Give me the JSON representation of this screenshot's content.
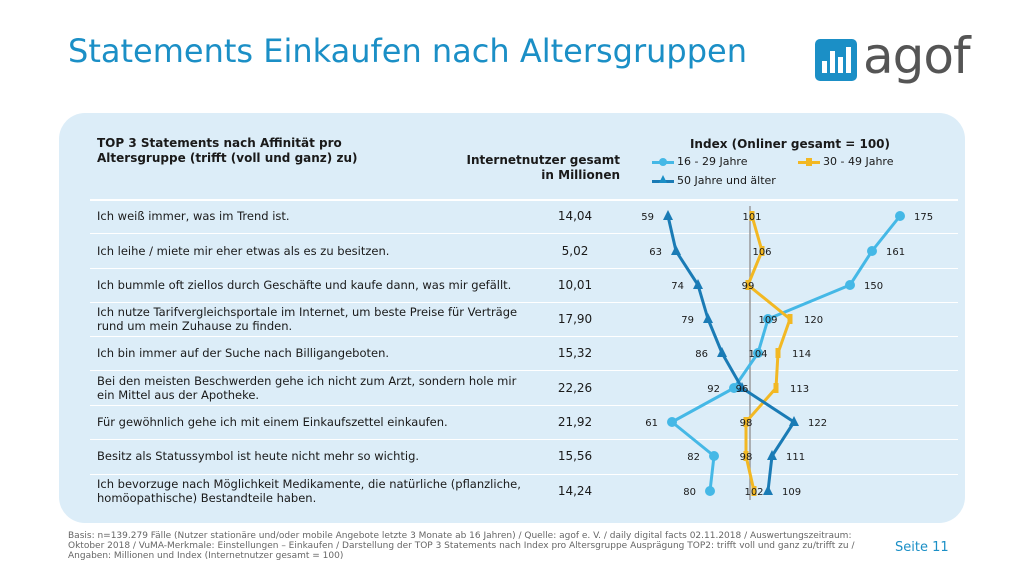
{
  "title": "Statements Einkaufen nach Altersgruppen",
  "logo_text": "agof",
  "header": {
    "left": "TOP 3 Statements nach Affinität pro Altersgruppe (trifft (voll und ganz) zu)",
    "mid_line1": "Internetnutzer gesamt",
    "mid_line2": "in Millionen",
    "right": "Index (Onliner gesamt = 100)"
  },
  "colors": {
    "age_16_29": "#45b8e6",
    "age_30_49": "#f2b823",
    "age_50_plus": "#1a7bb5",
    "baseline": "#9a9a9a",
    "accent": "#1b8fc6"
  },
  "footer": "Basis: n=139.279 Fälle (Nutzer stationäre und/oder mobile Angebote letzte 3 Monate ab 16 Jahren) / Quelle: agof e. V. / daily digital facts 02.11.2018 / Auswertungszeitraum: Oktober 2018 / VuMA-Merkmale: Einstellungen – Einkaufen / Darstellung der TOP 3 Statements nach Index pro Altersgruppe Ausprägung TOP2: trifft voll und ganz zu/trifft zu / Angaben: Millionen und Index (Internetnutzer gesamt = 100)",
  "page": "Seite 11",
  "chart_data": {
    "type": "line",
    "title": "Index (Onliner gesamt = 100)",
    "categories": [
      "Ich weiß immer, was im Trend ist.",
      "Ich leihe / miete mir eher etwas als es zu besitzen.",
      "Ich bummle oft ziellos durch Geschäfte und kaufe dann, was mir gefällt.",
      "Ich nutze Tarifvergleichsportale im Internet, um beste Preise für Verträge rund um mein Zuhause zu finden.",
      "Ich bin immer auf der Suche nach Billigangeboten.",
      "Bei den meisten Beschwerden gehe ich nicht zum Arzt, sondern hole mir ein Mittel aus der Apotheke.",
      "Für gewöhnlich gehe ich mit einem Einkaufszettel einkaufen.",
      "Besitz als Statussymbol ist heute nicht mehr so wichtig.",
      "Ich bevorzuge nach Möglichkeit Medikamente, die natürliche (pflanzliche, homöopathische) Bestandteile haben."
    ],
    "internetnutzer_mio": [
      "14,04",
      "5,02",
      "10,01",
      "17,90",
      "15,32",
      "22,26",
      "21,92",
      "15,56",
      "14,24"
    ],
    "series": [
      {
        "name": "16 - 29 Jahre",
        "values": [
          175,
          161,
          150,
          109,
          104,
          92,
          61,
          82,
          80
        ]
      },
      {
        "name": "30 - 49 Jahre",
        "values": [
          101,
          106,
          99,
          120,
          114,
          113,
          98,
          98,
          102
        ]
      },
      {
        "name": "50 Jahre und älter",
        "values": [
          59,
          63,
          74,
          79,
          86,
          96,
          122,
          111,
          109
        ]
      }
    ],
    "baseline": 100,
    "xlim": [
      40,
      200
    ]
  }
}
